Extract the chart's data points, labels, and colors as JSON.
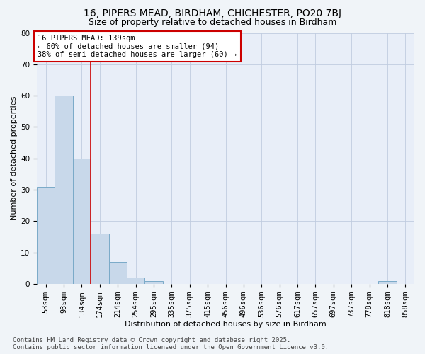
{
  "title_line1": "16, PIPERS MEAD, BIRDHAM, CHICHESTER, PO20 7BJ",
  "title_line2": "Size of property relative to detached houses in Birdham",
  "xlabel": "Distribution of detached houses by size in Birdham",
  "ylabel": "Number of detached properties",
  "categories": [
    "53sqm",
    "93sqm",
    "134sqm",
    "174sqm",
    "214sqm",
    "254sqm",
    "295sqm",
    "335sqm",
    "375sqm",
    "415sqm",
    "456sqm",
    "496sqm",
    "536sqm",
    "576sqm",
    "617sqm",
    "657sqm",
    "697sqm",
    "737sqm",
    "778sqm",
    "818sqm",
    "858sqm"
  ],
  "values": [
    31,
    60,
    40,
    16,
    7,
    2,
    1,
    0,
    0,
    0,
    0,
    0,
    0,
    0,
    0,
    0,
    0,
    0,
    0,
    1,
    0
  ],
  "bar_color": "#c8d8ea",
  "bar_edge_color": "#7aaac8",
  "vline_x": 2.5,
  "vline_color": "#cc0000",
  "annotation_text": "16 PIPERS MEAD: 139sqm\n← 60% of detached houses are smaller (94)\n38% of semi-detached houses are larger (60) →",
  "annotation_box_color": "#ffffff",
  "annotation_box_edge": "#cc0000",
  "ylim": [
    0,
    80
  ],
  "yticks": [
    0,
    10,
    20,
    30,
    40,
    50,
    60,
    70,
    80
  ],
  "grid_color": "#c0cce0",
  "bg_color": "#e8eef8",
  "fig_bg_color": "#f0f4f8",
  "footer_line1": "Contains HM Land Registry data © Crown copyright and database right 2025.",
  "footer_line2": "Contains public sector information licensed under the Open Government Licence v3.0.",
  "title_fontsize": 10,
  "subtitle_fontsize": 9,
  "axis_label_fontsize": 8,
  "tick_fontsize": 7.5,
  "annotation_fontsize": 7.5,
  "footer_fontsize": 6.5
}
